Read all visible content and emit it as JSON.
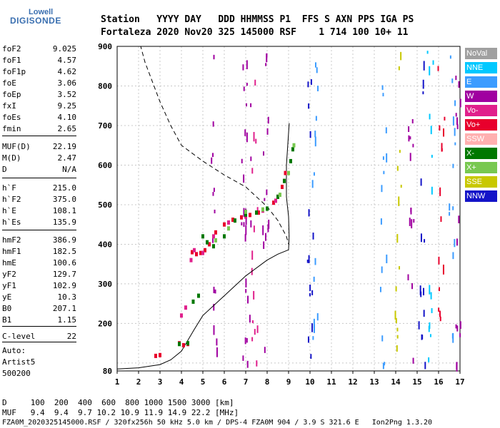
{
  "logo": {
    "line1": "Lowell",
    "line2": "DIGISONDE"
  },
  "header": {
    "row1": "Station   YYYY DAY   DDD HHMMSS P1  FFS S AXN PPS IGA PS",
    "row2": "Fortaleza 2020 Nov20 325 145000 RSF    1 714 100 10+ 11"
  },
  "params": [
    {
      "k": "foF2",
      "v": "9.025"
    },
    {
      "k": "foF1",
      "v": "4.57"
    },
    {
      "k": "foF1p",
      "v": "4.62"
    },
    {
      "k": "foE",
      "v": "3.06"
    },
    {
      "k": "foEp",
      "v": "3.52"
    },
    {
      "k": "fxI",
      "v": "9.25"
    },
    {
      "k": "foEs",
      "v": "4.10"
    },
    {
      "k": "fmin",
      "v": "2.65"
    },
    {
      "k": "MUF(D)",
      "v": "22.19"
    },
    {
      "k": "M(D)",
      "v": "2.47"
    },
    {
      "k": "D",
      "v": "N/A"
    },
    {
      "k": "h`F",
      "v": "215.0"
    },
    {
      "k": "h`F2",
      "v": "375.0"
    },
    {
      "k": "h`E",
      "v": "108.1"
    },
    {
      "k": "h`Es",
      "v": "135.9"
    },
    {
      "k": "hmF2",
      "v": "386.9"
    },
    {
      "k": "hmF1",
      "v": "182.5"
    },
    {
      "k": "hmE",
      "v": "100.6"
    },
    {
      "k": "yF2",
      "v": "129.7"
    },
    {
      "k": "yF1",
      "v": "102.9"
    },
    {
      "k": "yE",
      "v": "10.3"
    },
    {
      "k": "B0",
      "v": "207.1"
    },
    {
      "k": "B1",
      "v": "1.15"
    },
    {
      "k": "C-level",
      "v": "22"
    }
  ],
  "auto": {
    "l1": "Auto:",
    "l2": "Artist5",
    "l3": "500200"
  },
  "legend": [
    {
      "label": "NoVal",
      "color": "#a0a0a0"
    },
    {
      "label": "NNE",
      "color": "#00c8ff"
    },
    {
      "label": "E",
      "color": "#3c9cff"
    },
    {
      "label": "W",
      "color": "#a000a0"
    },
    {
      "label": "Vo-",
      "color": "#e0208c"
    },
    {
      "label": "Vo+",
      "color": "#e8002c"
    },
    {
      "label": "SSW",
      "color": "#ffb0b0"
    },
    {
      "label": "X-",
      "color": "#007800"
    },
    {
      "label": "X+",
      "color": "#78c850"
    },
    {
      "label": "SSE",
      "color": "#c8c800"
    },
    {
      "label": "NNW",
      "color": "#1414c8"
    }
  ],
  "footer": {
    "d_line": "D     100  200  400  600  800 1000 1500 3000 [km]",
    "muf_line": "MUF   9.4  9.4  9.7 10.2 10.9 11.9 14.9 22.2 [MHz]",
    "file_line": "FZA0M_2020325145000.RSF / 320fx256h 50 kHz 5.0 km / DPS-4 FZA0M 904 / 3.9 S 321.6 E   Ion2Png 1.3.20"
  },
  "chart_data": {
    "type": "scatter",
    "xlabel": "",
    "ylabel": "",
    "xlim": [
      1,
      17
    ],
    "ylim": [
      80,
      900
    ],
    "xticks": [
      1,
      2,
      3,
      4,
      5,
      6,
      7,
      8,
      9,
      10,
      11,
      12,
      13,
      14,
      15,
      16,
      17
    ],
    "yticks": [
      80,
      100,
      200,
      300,
      400,
      500,
      600,
      700,
      800,
      900
    ],
    "grid": true,
    "series": [
      {
        "color": "#e8002c",
        "points": [
          [
            2.8,
            118
          ],
          [
            3.0,
            120
          ],
          [
            3.9,
            150
          ],
          [
            4.1,
            145
          ],
          [
            4.3,
            148
          ],
          [
            4.5,
            380
          ],
          [
            4.7,
            375
          ],
          [
            4.9,
            378
          ],
          [
            5.1,
            385
          ],
          [
            5.3,
            400
          ],
          [
            5.6,
            430
          ],
          [
            6.0,
            450
          ],
          [
            6.4,
            462
          ],
          [
            6.8,
            468
          ],
          [
            7.2,
            474
          ],
          [
            7.6,
            480
          ],
          [
            8.0,
            490
          ],
          [
            8.3,
            505
          ],
          [
            8.5,
            520
          ],
          [
            8.7,
            545
          ],
          [
            8.85,
            580
          ]
        ]
      },
      {
        "color": "#e0208c",
        "points": [
          [
            4.0,
            220
          ],
          [
            4.2,
            240
          ],
          [
            4.45,
            360
          ],
          [
            4.6,
            385
          ],
          [
            5.0,
            378
          ],
          [
            5.5,
            420
          ],
          [
            6.2,
            455
          ],
          [
            7.0,
            470
          ],
          [
            7.8,
            485
          ],
          [
            8.4,
            510
          ],
          [
            8.8,
            560
          ]
        ]
      },
      {
        "color": "#007800",
        "points": [
          [
            3.9,
            148
          ],
          [
            4.3,
            150
          ],
          [
            4.55,
            255
          ],
          [
            4.8,
            270
          ],
          [
            5.0,
            420
          ],
          [
            5.2,
            405
          ],
          [
            5.5,
            395
          ],
          [
            6.0,
            420
          ],
          [
            6.5,
            460
          ],
          [
            7.0,
            475
          ],
          [
            7.5,
            480
          ],
          [
            8.0,
            490
          ],
          [
            8.5,
            520
          ],
          [
            8.8,
            560
          ],
          [
            9.1,
            610
          ],
          [
            9.2,
            640
          ]
        ]
      },
      {
        "color": "#78c850",
        "points": [
          [
            5.6,
            410
          ],
          [
            6.2,
            440
          ],
          [
            7.0,
            482
          ],
          [
            7.8,
            488
          ],
          [
            8.6,
            525
          ],
          [
            9.0,
            580
          ],
          [
            9.25,
            650
          ]
        ]
      }
    ],
    "profile_solid": [
      [
        1,
        85
      ],
      [
        2,
        88
      ],
      [
        3,
        96
      ],
      [
        3.5,
        108
      ],
      [
        4,
        130
      ],
      [
        4.6,
        185
      ],
      [
        5,
        220
      ],
      [
        6,
        270
      ],
      [
        7,
        320
      ],
      [
        8,
        360
      ],
      [
        8.5,
        375
      ],
      [
        9,
        386
      ],
      [
        9.025,
        420
      ],
      [
        9.0,
        470
      ],
      [
        8.9,
        520
      ],
      [
        8.9,
        600
      ],
      [
        9.03,
        706
      ]
    ],
    "profile_dashed": [
      [
        1.7,
        900
      ],
      [
        2.1,
        900
      ],
      [
        2.3,
        860
      ],
      [
        3.0,
        760
      ],
      [
        3.5,
        700
      ],
      [
        4.0,
        650
      ],
      [
        5.0,
        610
      ],
      [
        6.0,
        575
      ],
      [
        7.0,
        545
      ],
      [
        8.0,
        495
      ],
      [
        8.5,
        460
      ],
      [
        8.9,
        420
      ],
      [
        9.0,
        400
      ]
    ]
  }
}
